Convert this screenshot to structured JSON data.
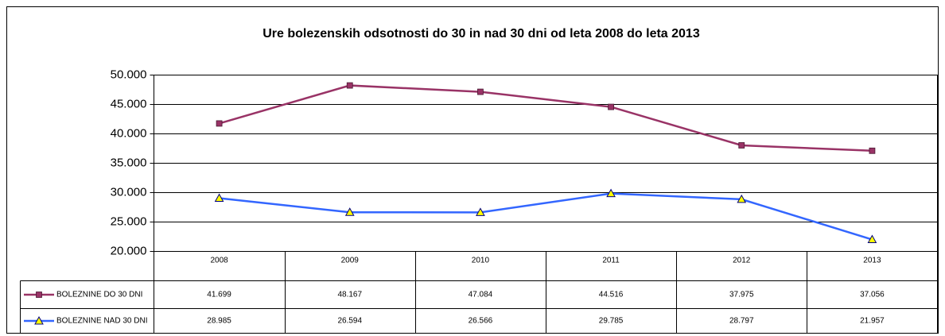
{
  "chart_data": {
    "type": "line",
    "title": "Ure bolezenskih odsotnosti do 30 in nad 30 dni od leta 2008 do leta  2013",
    "categories": [
      "2008",
      "2009",
      "2010",
      "2011",
      "2012",
      "2013"
    ],
    "series": [
      {
        "name": "BOLEZNINE DO 30 DNI",
        "color": "#993366",
        "marker": "square",
        "values": [
          41699,
          48167,
          47084,
          44516,
          37975,
          37056
        ],
        "value_labels": [
          "41.699",
          "48.167",
          "47.084",
          "44.516",
          "37.975",
          "37.056"
        ]
      },
      {
        "name": "BOLEZNINE NAD 30 DNI",
        "color": "#3366ff",
        "marker": "triangle",
        "values": [
          28985,
          26594,
          26566,
          29785,
          28797,
          21957
        ],
        "value_labels": [
          "28.985",
          "26.594",
          "26.566",
          "29.785",
          "28.797",
          "21.957"
        ]
      }
    ],
    "ylim": [
      20000,
      50000
    ],
    "yticks": [
      {
        "value": 20000,
        "label": "20.000"
      },
      {
        "value": 25000,
        "label": "25.000"
      },
      {
        "value": 30000,
        "label": "30.000"
      },
      {
        "value": 35000,
        "label": "35.000"
      },
      {
        "value": 40000,
        "label": "40.000"
      },
      {
        "value": 45000,
        "label": "45.000"
      },
      {
        "value": 50000,
        "label": "50.000"
      }
    ],
    "grid": true
  }
}
